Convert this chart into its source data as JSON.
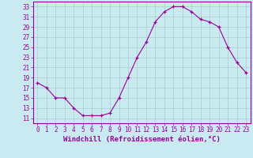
{
  "hours": [
    0,
    1,
    2,
    3,
    4,
    5,
    6,
    7,
    8,
    9,
    10,
    11,
    12,
    13,
    14,
    15,
    16,
    17,
    18,
    19,
    20,
    21,
    22,
    23
  ],
  "values": [
    18,
    17,
    15,
    15,
    13,
    11.5,
    11.5,
    11.5,
    12,
    15,
    19,
    23,
    26,
    30,
    32,
    33,
    33,
    32,
    30.5,
    30,
    29,
    25,
    22,
    20
  ],
  "line_color": "#990099",
  "marker": "+",
  "bg_color": "#c8eaf0",
  "grid_color": "#aacccc",
  "xlabel": "Windchill (Refroidissement éolien,°C)",
  "ylabel_ticks": [
    11,
    13,
    15,
    17,
    19,
    21,
    23,
    25,
    27,
    29,
    31,
    33
  ],
  "ylim": [
    10.0,
    34.0
  ],
  "xlim": [
    -0.5,
    23.5
  ],
  "axis_color": "#990099",
  "tick_fontsize": 5.5,
  "label_fontsize": 6.5
}
